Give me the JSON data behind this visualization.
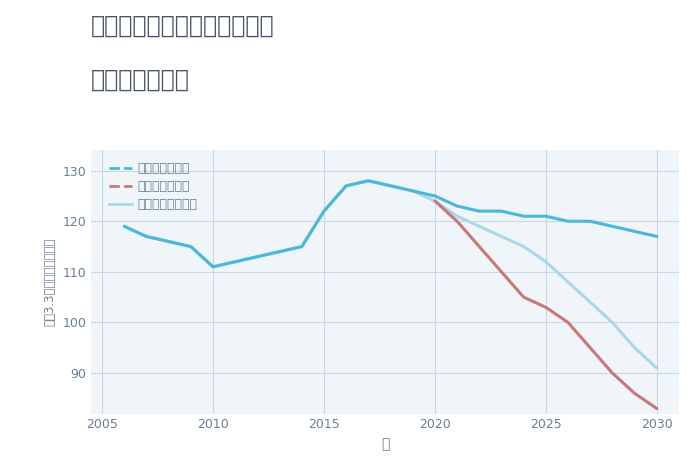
{
  "title_line1": "兵庫県西宮市甲子園浦風町の",
  "title_line2": "土地の価格推移",
  "xlabel": "年",
  "ylabel": "坪（3.3㎡）単価（万円）",
  "background_color": "#ffffff",
  "plot_background": "#f0f5fa",
  "ylim": [
    82,
    134
  ],
  "xlim": [
    2004.5,
    2031
  ],
  "yticks": [
    90,
    100,
    110,
    120,
    130
  ],
  "xticks": [
    2005,
    2010,
    2015,
    2020,
    2025,
    2030
  ],
  "good_scenario": {
    "x": [
      2006,
      2007,
      2008,
      2009,
      2010,
      2011,
      2012,
      2013,
      2014,
      2015,
      2016,
      2017,
      2018,
      2019,
      2020,
      2021,
      2022,
      2023,
      2024,
      2025,
      2026,
      2027,
      2028,
      2029,
      2030
    ],
    "y": [
      119,
      117,
      116,
      115,
      111,
      112,
      113,
      114,
      115,
      122,
      127,
      128,
      127,
      126,
      125,
      123,
      122,
      122,
      121,
      121,
      120,
      120,
      119,
      118,
      117
    ],
    "color": "#4ab8d8",
    "linewidth": 2.2,
    "label": "グッドシナリオ"
  },
  "bad_scenario": {
    "x": [
      2020,
      2021,
      2022,
      2023,
      2024,
      2025,
      2026,
      2027,
      2028,
      2029,
      2030
    ],
    "y": [
      124,
      120,
      115,
      110,
      105,
      103,
      100,
      95,
      90,
      86,
      83
    ],
    "color": "#c87878",
    "linewidth": 2.2,
    "label": "バッドシナリオ"
  },
  "normal_scenario": {
    "x": [
      2006,
      2007,
      2008,
      2009,
      2010,
      2011,
      2012,
      2013,
      2014,
      2015,
      2016,
      2017,
      2018,
      2019,
      2020,
      2021,
      2022,
      2023,
      2024,
      2025,
      2026,
      2027,
      2028,
      2029,
      2030
    ],
    "y": [
      119,
      117,
      116,
      115,
      111,
      112,
      113,
      114,
      115,
      122,
      127,
      128,
      127,
      126,
      124,
      121,
      119,
      117,
      115,
      112,
      108,
      104,
      100,
      95,
      91
    ],
    "color": "#a8d8ea",
    "linewidth": 2.2,
    "label": "ノーマルシナリオ"
  },
  "grid_color": "#c8d8e8",
  "tick_color": "#6a7f94",
  "title_color": "#4a5568",
  "label_color": "#6a7f94"
}
